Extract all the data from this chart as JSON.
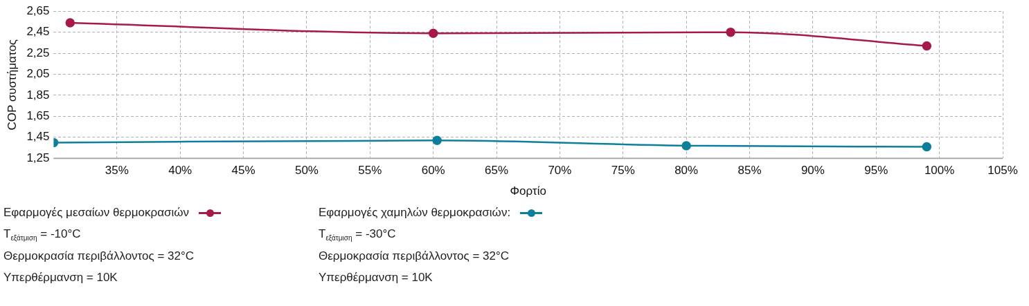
{
  "chart_data": {
    "type": "line",
    "xlabel": "Φορτίο",
    "ylabel": "COP συστήματος",
    "xlim": [
      30,
      105
    ],
    "xticks": [
      {
        "value": 35,
        "label": "35%"
      },
      {
        "value": 40,
        "label": "40%"
      },
      {
        "value": 45,
        "label": "45%"
      },
      {
        "value": 50,
        "label": "50%"
      },
      {
        "value": 55,
        "label": "55%"
      },
      {
        "value": 60,
        "label": "60%"
      },
      {
        "value": 65,
        "label": "65%"
      },
      {
        "value": 70,
        "label": "70%"
      },
      {
        "value": 75,
        "label": "75%"
      },
      {
        "value": 80,
        "label": "80%"
      },
      {
        "value": 85,
        "label": "85%"
      },
      {
        "value": 90,
        "label": "90%"
      },
      {
        "value": 95,
        "label": "95%"
      },
      {
        "value": 100,
        "label": "100%"
      },
      {
        "value": 105,
        "label": "105%"
      }
    ],
    "ylim": [
      1.25,
      2.65
    ],
    "yticks": [
      {
        "value": 1.25,
        "label": "1,25"
      },
      {
        "value": 1.45,
        "label": "1,45"
      },
      {
        "value": 1.65,
        "label": "1,65"
      },
      {
        "value": 1.85,
        "label": "1,85"
      },
      {
        "value": 2.05,
        "label": "2,05"
      },
      {
        "value": 2.25,
        "label": "2,25"
      },
      {
        "value": 2.45,
        "label": "2,45"
      },
      {
        "value": 2.65,
        "label": "2,65"
      }
    ],
    "series": [
      {
        "name": "Εφαρμογές μεσαίων θερμοκρασιών",
        "color": "#a6194a",
        "x": [
          31.3,
          60,
          83.5,
          99
        ],
        "values": [
          2.54,
          2.44,
          2.45,
          2.32
        ]
      },
      {
        "name": "Εφαρμογές χαμηλών θερμοκρασιών:",
        "color": "#0e7f9a",
        "x": [
          30,
          60.3,
          80,
          99
        ],
        "values": [
          1.4,
          1.42,
          1.37,
          1.36
        ]
      }
    ],
    "annotations": [
      "T$_{εξάτμιση}$ = -10°C",
      "T$_{εξάτμιση}$ = -30°C",
      "Θερμοκρασία περιβάλλοντος = 32°C",
      "Θερμοκρασία περιβάλλοντος = 32°C",
      "Υπερθέρμανση = 10K",
      "Υπερθέρμανση = 10K"
    ],
    "grid": true,
    "legend": "bottom left",
    "marker": "circle",
    "line_style": "solid"
  }
}
